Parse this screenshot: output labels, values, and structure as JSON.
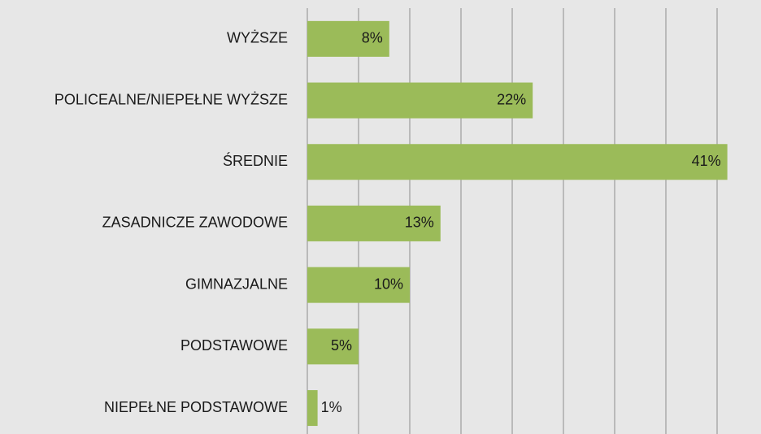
{
  "chart_data": {
    "type": "bar",
    "orientation": "horizontal",
    "categories": [
      "WYŻSZE",
      "POLICEALNE/NIEPEŁNE WYŻSZE",
      "ŚREDNIE",
      "ZASADNICZE ZAWODOWE",
      "GIMNAZJALNE",
      "PODSTAWOWE",
      "NIEPEŁNE PODSTAWOWE"
    ],
    "values": [
      8,
      22,
      41,
      13,
      10,
      5,
      1
    ],
    "value_labels": [
      "8%",
      "22%",
      "41%",
      "13%",
      "10%",
      "5%",
      "1%"
    ],
    "color": "#9bbb59",
    "xlim": [
      0,
      40
    ],
    "xticks": [
      0,
      5,
      10,
      15,
      20,
      25,
      30,
      35,
      40
    ],
    "grid": true
  }
}
